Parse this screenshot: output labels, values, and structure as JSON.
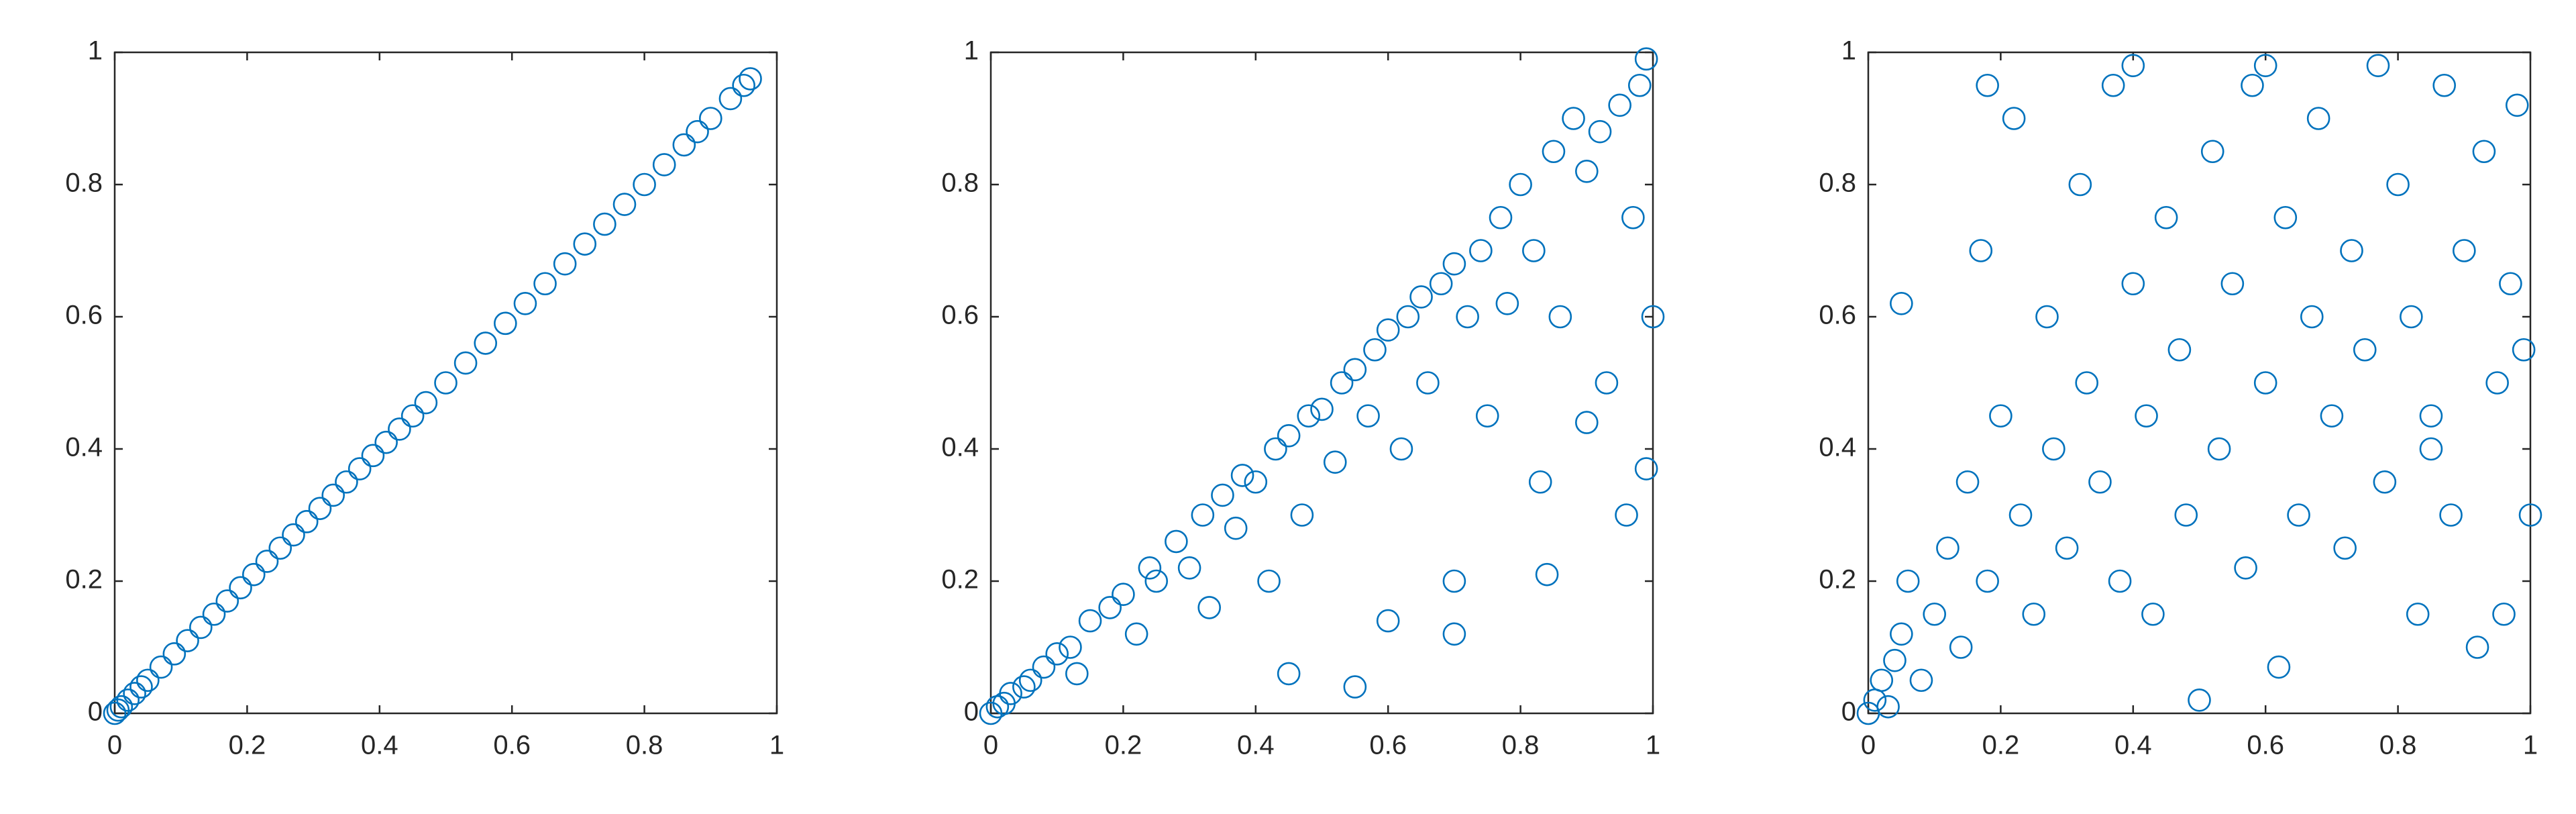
{
  "chart_data": [
    {
      "type": "scatter",
      "color": "#0072bd",
      "x": [
        0,
        0.005,
        0.01,
        0.02,
        0.03,
        0.04,
        0.05,
        0.07,
        0.09,
        0.11,
        0.13,
        0.15,
        0.17,
        0.19,
        0.21,
        0.23,
        0.25,
        0.27,
        0.29,
        0.31,
        0.33,
        0.35,
        0.37,
        0.39,
        0.41,
        0.43,
        0.45,
        0.47,
        0.5,
        0.53,
        0.56,
        0.59,
        0.62,
        0.65,
        0.68,
        0.71,
        0.74,
        0.77,
        0.8,
        0.83,
        0.86,
        0.88,
        0.9,
        0.93,
        0.95,
        0.96
      ],
      "values": [
        0,
        0.005,
        0.01,
        0.02,
        0.03,
        0.04,
        0.05,
        0.07,
        0.09,
        0.11,
        0.13,
        0.15,
        0.17,
        0.19,
        0.21,
        0.23,
        0.25,
        0.27,
        0.29,
        0.31,
        0.33,
        0.35,
        0.37,
        0.39,
        0.41,
        0.43,
        0.45,
        0.47,
        0.5,
        0.53,
        0.56,
        0.59,
        0.62,
        0.65,
        0.68,
        0.71,
        0.74,
        0.77,
        0.8,
        0.83,
        0.86,
        0.88,
        0.9,
        0.93,
        0.95,
        0.96
      ],
      "xlim": [
        0,
        1
      ],
      "ylim": [
        0,
        1
      ],
      "xticks": [
        0,
        0.2,
        0.4,
        0.6,
        0.8,
        1
      ],
      "yticks": [
        0,
        0.2,
        0.4,
        0.6,
        0.8,
        1
      ]
    },
    {
      "type": "scatter",
      "color": "#0072bd",
      "x": [
        0,
        0.01,
        0.02,
        0.03,
        0.05,
        0.06,
        0.08,
        0.1,
        0.12,
        0.13,
        0.15,
        0.18,
        0.2,
        0.22,
        0.24,
        0.25,
        0.28,
        0.3,
        0.32,
        0.33,
        0.35,
        0.37,
        0.38,
        0.4,
        0.42,
        0.43,
        0.45,
        0.47,
        0.48,
        0.5,
        0.52,
        0.53,
        0.55,
        0.55,
        0.57,
        0.58,
        0.6,
        0.62,
        0.63,
        0.65,
        0.66,
        0.68,
        0.7,
        0.7,
        0.72,
        0.74,
        0.75,
        0.77,
        0.78,
        0.8,
        0.82,
        0.83,
        0.85,
        0.86,
        0.88,
        0.9,
        0.92,
        0.93,
        0.95,
        0.97,
        0.98,
        0.99,
        1,
        0.99,
        0.96,
        0.9,
        0.84,
        0.7,
        0.6,
        0.45
      ],
      "values": [
        0,
        0.01,
        0.015,
        0.03,
        0.04,
        0.05,
        0.07,
        0.09,
        0.1,
        0.06,
        0.14,
        0.16,
        0.18,
        0.12,
        0.22,
        0.2,
        0.26,
        0.22,
        0.3,
        0.16,
        0.33,
        0.28,
        0.36,
        0.35,
        0.2,
        0.4,
        0.42,
        0.3,
        0.45,
        0.46,
        0.38,
        0.5,
        0.52,
        0.04,
        0.45,
        0.55,
        0.58,
        0.4,
        0.6,
        0.63,
        0.5,
        0.65,
        0.68,
        0.2,
        0.6,
        0.7,
        0.45,
        0.75,
        0.62,
        0.8,
        0.7,
        0.35,
        0.85,
        0.6,
        0.9,
        0.82,
        0.88,
        0.5,
        0.92,
        0.75,
        0.95,
        0.99,
        0.6,
        0.37,
        0.3,
        0.44,
        0.21,
        0.12,
        0.14,
        0.06
      ],
      "xlim": [
        0,
        1
      ],
      "ylim": [
        0,
        1
      ],
      "xticks": [
        0,
        0.2,
        0.4,
        0.6,
        0.8,
        1
      ],
      "yticks": [
        0,
        0.2,
        0.4,
        0.6,
        0.8,
        1
      ]
    },
    {
      "type": "scatter",
      "color": "#0072bd",
      "x": [
        0,
        0.01,
        0.02,
        0.03,
        0.04,
        0.05,
        0.06,
        0.08,
        0.1,
        0.12,
        0.14,
        0.15,
        0.17,
        0.18,
        0.2,
        0.22,
        0.23,
        0.25,
        0.27,
        0.28,
        0.3,
        0.32,
        0.33,
        0.35,
        0.37,
        0.38,
        0.4,
        0.42,
        0.43,
        0.45,
        0.47,
        0.48,
        0.5,
        0.52,
        0.53,
        0.55,
        0.57,
        0.58,
        0.6,
        0.62,
        0.63,
        0.65,
        0.67,
        0.68,
        0.7,
        0.72,
        0.73,
        0.75,
        0.77,
        0.78,
        0.8,
        0.82,
        0.83,
        0.85,
        0.87,
        0.88,
        0.9,
        0.92,
        0.93,
        0.95,
        0.97,
        0.98,
        1,
        0.99,
        0.18,
        0.05,
        0.4,
        0.6,
        0.85,
        0.96
      ],
      "values": [
        0,
        0.02,
        0.05,
        0.01,
        0.08,
        0.12,
        0.2,
        0.05,
        0.15,
        0.25,
        0.1,
        0.35,
        0.7,
        0.2,
        0.45,
        0.9,
        0.3,
        0.15,
        0.6,
        0.4,
        0.25,
        0.8,
        0.5,
        0.35,
        0.95,
        0.2,
        0.65,
        0.45,
        0.15,
        0.75,
        0.55,
        0.3,
        0.02,
        0.85,
        0.4,
        0.65,
        0.22,
        0.95,
        0.5,
        0.07,
        0.75,
        0.3,
        0.6,
        0.9,
        0.45,
        0.25,
        0.7,
        0.55,
        0.98,
        0.35,
        0.8,
        0.6,
        0.15,
        0.45,
        0.95,
        0.3,
        0.7,
        0.1,
        0.85,
        0.5,
        0.65,
        0.92,
        0.3,
        0.55,
        0.95,
        0.62,
        0.98,
        0.98,
        0.4,
        0.15
      ],
      "xlim": [
        0,
        1
      ],
      "ylim": [
        0,
        1
      ],
      "xticks": [
        0,
        0.2,
        0.4,
        0.6,
        0.8,
        1
      ],
      "yticks": [
        0,
        0.2,
        0.4,
        0.6,
        0.8,
        1
      ]
    }
  ]
}
